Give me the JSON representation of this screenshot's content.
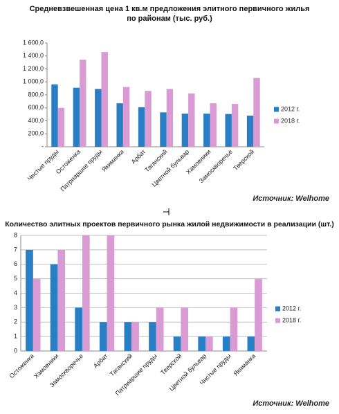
{
  "chart_data": [
    {
      "type": "bar",
      "title": "Средневзвешенная цена 1 кв.м предложения элитного первичного жилья\nпо районам (тыс. руб.)",
      "categories": [
        "Чистые пруды",
        "Остоженка",
        "Патриаршие пруды",
        "Якиманка",
        "Арбат",
        "Таганский",
        "Цветной бульвар",
        "Хамовники",
        "Замоскворечье",
        "Тверской"
      ],
      "series": [
        {
          "name": "2012 г.",
          "color": "#2a7fc4",
          "values": [
            960,
            910,
            890,
            670,
            610,
            530,
            510,
            510,
            505,
            480
          ]
        },
        {
          "name": "2018 г.",
          "color": "#d99bd3",
          "values": [
            600,
            1340,
            1460,
            920,
            860,
            890,
            820,
            670,
            660,
            1060
          ]
        }
      ],
      "ylim": [
        0,
        1600
      ],
      "yticks": [
        {
          "value": 0,
          "label": "-"
        },
        {
          "value": 200,
          "label": "200,0"
        },
        {
          "value": 400,
          "label": "400,0"
        },
        {
          "value": 600,
          "label": "600,0"
        },
        {
          "value": 800,
          "label": "800,0"
        },
        {
          "value": 1000,
          "label": "1 000,0"
        },
        {
          "value": 1200,
          "label": "1 200,0"
        },
        {
          "value": 1400,
          "label": "1 400,0"
        },
        {
          "value": 1600,
          "label": "1 600,0"
        }
      ],
      "grid": false,
      "legend": "right",
      "source": "Источник: Welhome"
    },
    {
      "type": "bar",
      "title": "Количество элитных проектов первичного рынка жилой недвижимости в реализации (шт.)",
      "categories": [
        "Остоженка",
        "Хамовники",
        "Замоскворечье",
        "Арбат",
        "Таганский",
        "Патриаршие пруды",
        "Тверской",
        "Цветной бульвар",
        "Чистые пруды",
        "Якиманка"
      ],
      "series": [
        {
          "name": "2012 г.",
          "color": "#2a7fc4",
          "values": [
            7,
            6,
            3,
            2,
            2,
            2,
            1,
            1,
            1,
            1
          ]
        },
        {
          "name": "2018 г.",
          "color": "#d99bd3",
          "values": [
            5,
            7,
            8,
            8,
            2,
            3,
            3,
            1,
            3,
            5
          ]
        }
      ],
      "ylim": [
        0,
        8
      ],
      "yticks": [
        0,
        1,
        2,
        3,
        4,
        5,
        6,
        7,
        8
      ],
      "grid": true,
      "legend": "right",
      "source": "Источник: Welhome"
    }
  ]
}
